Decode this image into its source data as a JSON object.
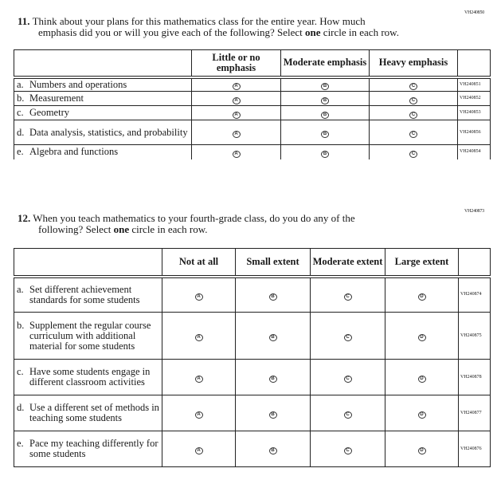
{
  "q11": {
    "code": "VH240850",
    "number": "11.",
    "text1": "Think about your plans for this mathematics class for the entire year. How much",
    "text2a": "emphasis did you or will you give each of the following? Select ",
    "text2b": "one",
    "text2c": " circle in each row.",
    "headers": [
      "Little or no emphasis",
      "Moderate emphasis",
      "Heavy emphasis"
    ],
    "options": [
      "A",
      "B",
      "C"
    ],
    "rows": [
      {
        "letter": "a.",
        "label": "Numbers and operations",
        "code": "VH240851"
      },
      {
        "letter": "b.",
        "label": "Measurement",
        "code": "VH240852"
      },
      {
        "letter": "c.",
        "label": "Geometry",
        "code": "VH240853"
      },
      {
        "letter": "d.",
        "label": "Data analysis, statistics, and probability",
        "code": "VH240856"
      },
      {
        "letter": "e.",
        "label": "Algebra and functions",
        "code": "VH240854"
      }
    ]
  },
  "q12": {
    "code": "VH240873",
    "number": "12.",
    "text1": "When you teach mathematics to your fourth-grade class, do you do any of the",
    "text2a": "following? Select ",
    "text2b": "one",
    "text2c": " circle in each row.",
    "headers": [
      "Not at all",
      "Small extent",
      "Moderate extent",
      "Large extent"
    ],
    "options": [
      "A",
      "B",
      "C",
      "D"
    ],
    "rows": [
      {
        "letter": "a.",
        "label": "Set different achievement standards for some students",
        "code": "VH240874"
      },
      {
        "letter": "b.",
        "label": "Supplement the regular course curriculum with additional material for some students",
        "code": "VH240875"
      },
      {
        "letter": "c.",
        "label": "Have some students engage in different classroom activities",
        "code": "VH240878"
      },
      {
        "letter": "d.",
        "label": "Use a different set of methods in teaching some students",
        "code": "VH240877"
      },
      {
        "letter": "e.",
        "label": "Pace my teaching differently for some students",
        "code": "VH240876"
      }
    ]
  }
}
